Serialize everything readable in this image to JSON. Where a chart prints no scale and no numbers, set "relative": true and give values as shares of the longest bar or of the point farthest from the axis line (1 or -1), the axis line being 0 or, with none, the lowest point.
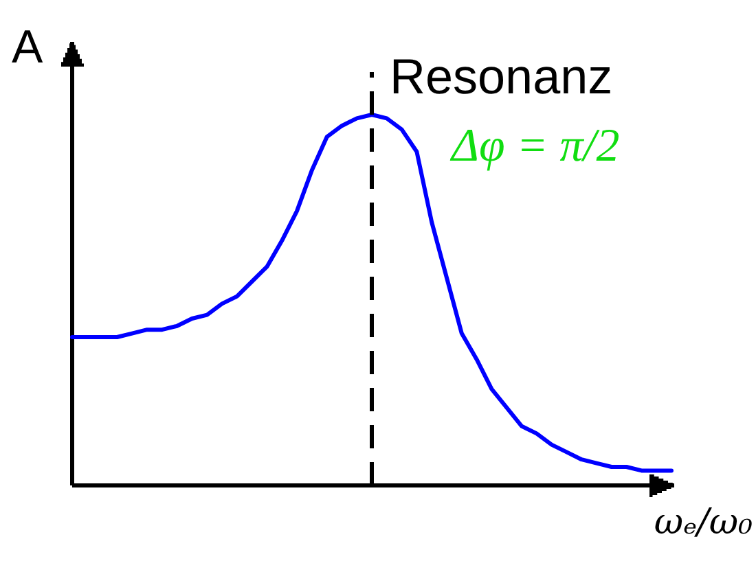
{
  "chart_data": {
    "type": "line",
    "relative": true,
    "categories": [
      null,
      null,
      null,
      null,
      null,
      null,
      null,
      null,
      null,
      null,
      null,
      null,
      null,
      null,
      null,
      null,
      null,
      null,
      null,
      null,
      null,
      null,
      null,
      null,
      null,
      null,
      null,
      null,
      null,
      null,
      null,
      null,
      null,
      null,
      null,
      null,
      null,
      null,
      null,
      null,
      null
    ],
    "series": [
      {
        "color": "#0000ff",
        "values": [
          0.4,
          0.4,
          0.4,
          0.4,
          0.41,
          0.42,
          0.42,
          0.43,
          0.45,
          0.46,
          0.49,
          0.51,
          0.55,
          0.59,
          0.66,
          0.74,
          0.85,
          0.94,
          0.97,
          0.99,
          1,
          0.99,
          0.96,
          0.9,
          0.71,
          0.56,
          0.41,
          0.34,
          0.26,
          0.21,
          0.16,
          0.14,
          0.11,
          0.09,
          0.07,
          0.06,
          0.05,
          0.05,
          0.04,
          0.04,
          0.04
        ]
      }
    ],
    "ylabel": "A",
    "xlabel": "ωₑ/ω₀",
    "annotations": [
      "Resonanz",
      "Δφ = π/2"
    ]
  }
}
